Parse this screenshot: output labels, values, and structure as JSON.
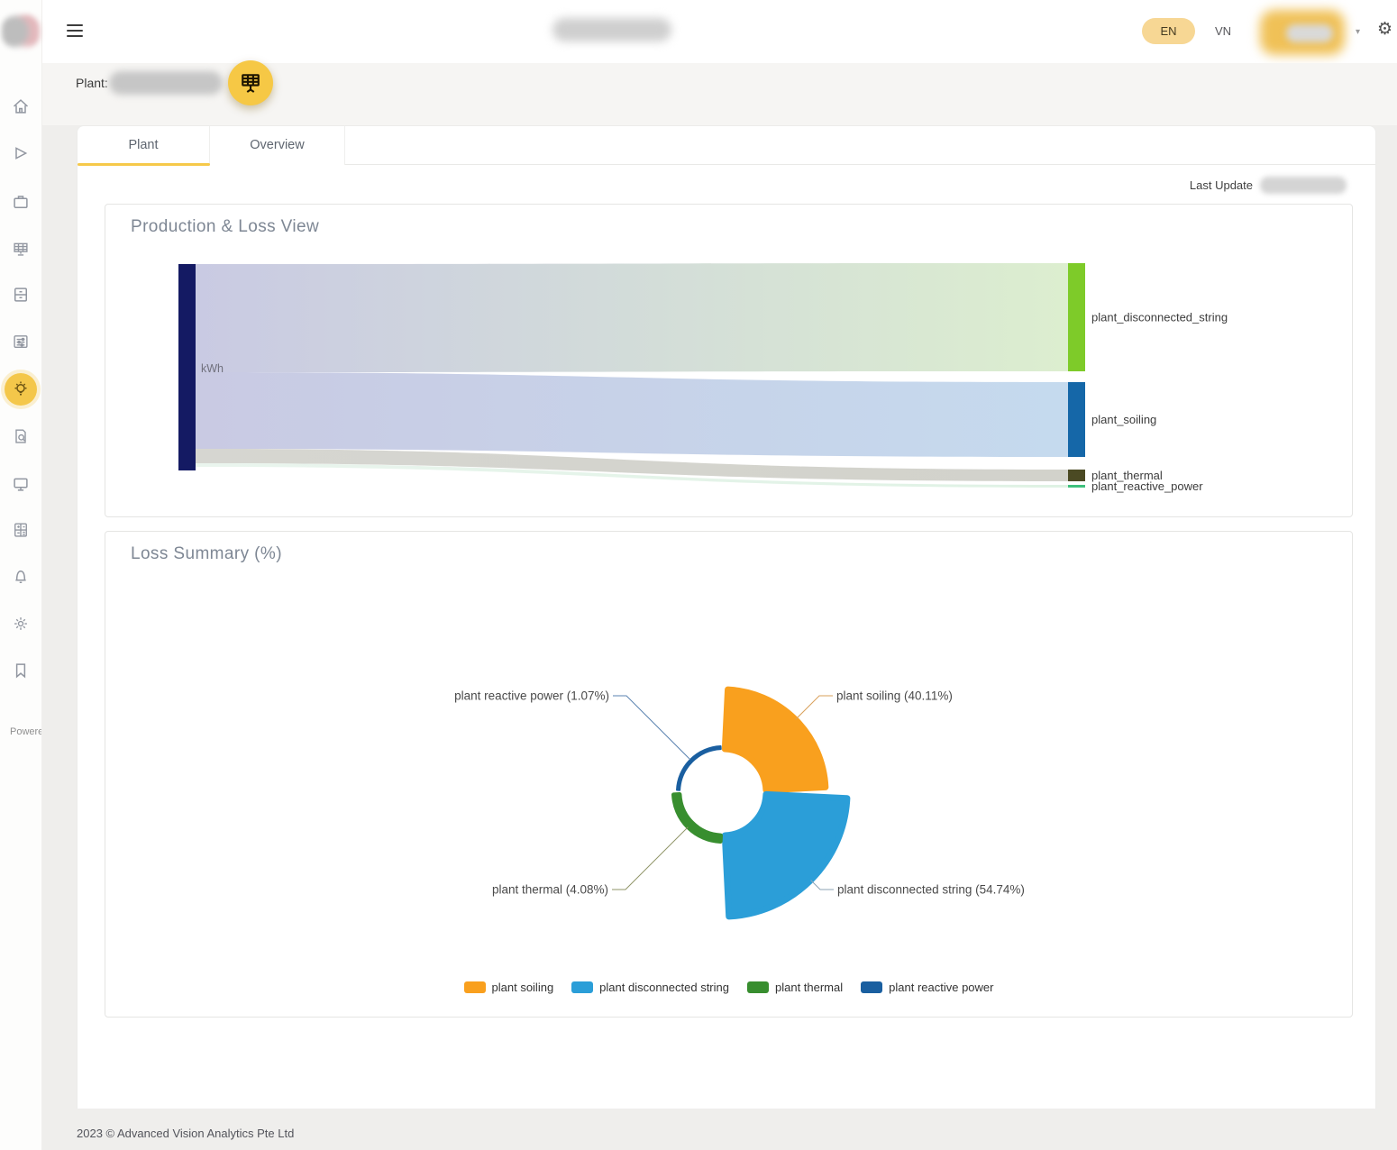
{
  "header": {
    "plant_label": "Plant:",
    "lang_en": "EN",
    "lang_vn": "VN",
    "last_update_label": "Last Update"
  },
  "tabs": [
    {
      "label": "Plant",
      "active": true
    },
    {
      "label": "Overview",
      "active": false
    }
  ],
  "sidebar": {
    "icons": [
      "home-icon",
      "flag-icon",
      "briefcase-icon",
      "solar-panel-icon",
      "cabinet-icon",
      "control-panel-icon",
      "lightbulb-icon",
      "report-icon",
      "monitor-icon",
      "calculator-icon",
      "bell-icon",
      "gear-icon",
      "bookmark-icon"
    ],
    "active_icon": "lightbulb-icon",
    "powered_text": "Powered"
  },
  "cards": {
    "production": {
      "title": "Production & Loss View"
    },
    "loss_summary": {
      "title": "Loss Summary (%)"
    }
  },
  "footer": {
    "copyright": "2023 © Advanced Vision Analytics Pte Ltd"
  },
  "colors": {
    "accent_yellow": "#f6c845",
    "active_tab_underline": "#f6c94a",
    "sankey_source": "#141a63"
  },
  "chart_data": [
    {
      "type": "sankey",
      "title": "Production & Loss View",
      "source": {
        "label": "kWh",
        "color": "#141a63"
      },
      "links": [
        {
          "target": "plant_disconnected_string",
          "pct": 54.74,
          "node_color": "#7ecb29",
          "flow_from": "#c9cae3",
          "flow_to": "#dceecf"
        },
        {
          "target": "plant_soiling",
          "pct": 40.11,
          "node_color": "#1567a8",
          "flow_from": "#c9cae3",
          "flow_to": "#c5daee"
        },
        {
          "target": "plant_thermal",
          "pct": 4.08,
          "node_color": "#4b4a23",
          "flow_from": "#d6d6d1",
          "flow_to": "#d2d2cb"
        },
        {
          "target": "plant_reactive_power",
          "pct": 1.07,
          "node_color": "#3ec07c",
          "flow_from": "#eaf5ee",
          "flow_to": "#dff2e4"
        }
      ]
    },
    {
      "type": "pie",
      "variant": "rose",
      "title": "Loss Summary (%)",
      "segments": [
        {
          "label": "plant soiling",
          "pct": 40.11,
          "color": "#f9a01e",
          "line_color": "#d9a05b"
        },
        {
          "label": "plant disconnected string",
          "pct": 54.74,
          "color": "#2b9ed8",
          "line_color": "#8da3b5"
        },
        {
          "label": "plant thermal",
          "pct": 4.08,
          "color": "#388e2f",
          "line_color": "#8f9467"
        },
        {
          "label": "plant reactive power",
          "pct": 1.07,
          "color": "#1a5fa0",
          "line_color": "#5b83b0"
        }
      ],
      "legend": [
        "plant soiling",
        "plant disconnected string",
        "plant thermal",
        "plant reactive power"
      ],
      "legend_position": "bottom",
      "inner_radius": 48,
      "radius_per_pct": 1.645
    }
  ]
}
